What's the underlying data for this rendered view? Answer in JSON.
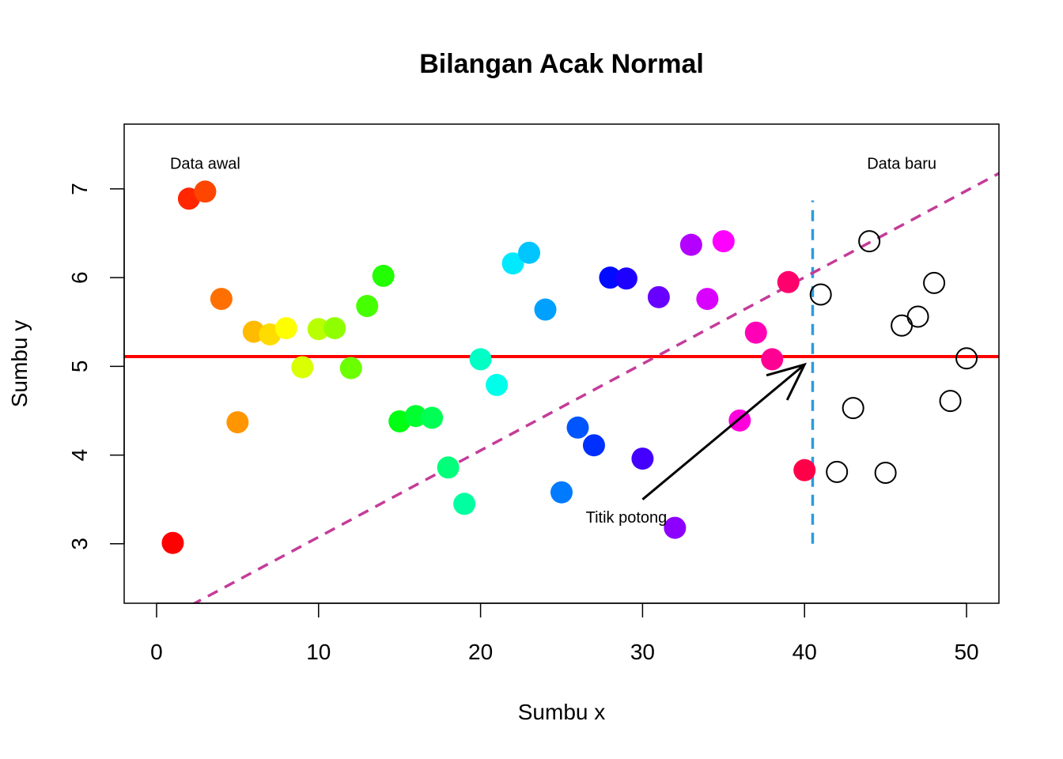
{
  "chart_data": {
    "type": "scatter",
    "title": "Bilangan Acak Normal",
    "xlabel": "Sumbu x",
    "ylabel": "Sumbu y",
    "xlim": [
      -2,
      52
    ],
    "ylim": [
      2.33,
      7.73
    ],
    "xticks": [
      0,
      10,
      20,
      30,
      40,
      50
    ],
    "yticks": [
      3,
      4,
      5,
      6,
      7
    ],
    "grid": false,
    "series": [
      {
        "name": "Data awal",
        "style": "filled",
        "points": [
          {
            "x": 1,
            "y": 3.01,
            "color": "#ff0000"
          },
          {
            "x": 2,
            "y": 6.89,
            "color": "#ff2600"
          },
          {
            "x": 3,
            "y": 6.97,
            "color": "#ff4600"
          },
          {
            "x": 4,
            "y": 5.76,
            "color": "#ff7000"
          },
          {
            "x": 5,
            "y": 4.37,
            "color": "#ff9500"
          },
          {
            "x": 6,
            "y": 5.39,
            "color": "#ffbb00"
          },
          {
            "x": 7,
            "y": 5.36,
            "color": "#ffdc00"
          },
          {
            "x": 8,
            "y": 5.43,
            "color": "#fffe00"
          },
          {
            "x": 9,
            "y": 4.99,
            "color": "#d9ff00"
          },
          {
            "x": 10,
            "y": 5.42,
            "color": "#b8ff00"
          },
          {
            "x": 11,
            "y": 5.43,
            "color": "#8fff00"
          },
          {
            "x": 12,
            "y": 4.98,
            "color": "#6bff00"
          },
          {
            "x": 13,
            "y": 5.68,
            "color": "#46ff00"
          },
          {
            "x": 14,
            "y": 6.02,
            "color": "#21ff00"
          },
          {
            "x": 15,
            "y": 4.38,
            "color": "#00ff12"
          },
          {
            "x": 16,
            "y": 4.44,
            "color": "#00ff30"
          },
          {
            "x": 17,
            "y": 4.42,
            "color": "#00ff55"
          },
          {
            "x": 18,
            "y": 3.86,
            "color": "#00ff7a"
          },
          {
            "x": 19,
            "y": 3.45,
            "color": "#00ffa0"
          },
          {
            "x": 20,
            "y": 5.08,
            "color": "#00ffc5"
          },
          {
            "x": 21,
            "y": 4.79,
            "color": "#00ffea"
          },
          {
            "x": 22,
            "y": 6.16,
            "color": "#00eaff"
          },
          {
            "x": 23,
            "y": 6.28,
            "color": "#00c5ff"
          },
          {
            "x": 24,
            "y": 5.64,
            "color": "#00a0ff"
          },
          {
            "x": 25,
            "y": 3.58,
            "color": "#007aff"
          },
          {
            "x": 26,
            "y": 4.31,
            "color": "#0055ff"
          },
          {
            "x": 27,
            "y": 4.11,
            "color": "#0030ff"
          },
          {
            "x": 28,
            "y": 6.0,
            "color": "#000bff"
          },
          {
            "x": 29,
            "y": 5.99,
            "color": "#1e00ff"
          },
          {
            "x": 30,
            "y": 3.96,
            "color": "#4300ff"
          },
          {
            "x": 31,
            "y": 5.78,
            "color": "#6800ff"
          },
          {
            "x": 32,
            "y": 3.18,
            "color": "#8d00ff"
          },
          {
            "x": 33,
            "y": 6.37,
            "color": "#b300ff"
          },
          {
            "x": 34,
            "y": 5.76,
            "color": "#d800ff"
          },
          {
            "x": 35,
            "y": 6.41,
            "color": "#fd00ff"
          },
          {
            "x": 36,
            "y": 4.39,
            "color": "#ff00dc"
          },
          {
            "x": 37,
            "y": 5.38,
            "color": "#ff00b7"
          },
          {
            "x": 38,
            "y": 5.08,
            "color": "#ff0092"
          },
          {
            "x": 39,
            "y": 5.95,
            "color": "#ff006d"
          },
          {
            "x": 40,
            "y": 3.83,
            "color": "#ff0048"
          }
        ]
      },
      {
        "name": "Data baru",
        "style": "open",
        "points": [
          {
            "x": 41,
            "y": 5.81
          },
          {
            "x": 42,
            "y": 3.81
          },
          {
            "x": 43,
            "y": 4.53
          },
          {
            "x": 44,
            "y": 6.41
          },
          {
            "x": 45,
            "y": 3.8
          },
          {
            "x": 46,
            "y": 5.46
          },
          {
            "x": 47,
            "y": 5.56
          },
          {
            "x": 48,
            "y": 5.94
          },
          {
            "x": 49,
            "y": 4.61
          },
          {
            "x": 50,
            "y": 5.09
          }
        ]
      }
    ],
    "lines": [
      {
        "name": "hline-mean",
        "kind": "horizontal",
        "y": 5.11,
        "color": "#ff0000",
        "dash": "solid"
      },
      {
        "name": "vline-split",
        "kind": "vertical",
        "x": 40.5,
        "y_from": 3.0,
        "y_to": 6.87,
        "color": "#2e9ae0",
        "dash": "dashed"
      },
      {
        "name": "regression-line",
        "kind": "abline",
        "intercept": 2.1,
        "slope": 0.0976,
        "color": "#c43c99",
        "dash": "dashed"
      }
    ],
    "annotations": [
      {
        "name": "label-data-awal",
        "text": "Data awal",
        "x": 3,
        "y": 7.29
      },
      {
        "name": "label-data-baru",
        "text": "Data baru",
        "x": 46,
        "y": 7.29
      },
      {
        "name": "label-titik-potong",
        "text": "Titik potong",
        "x": 29,
        "y": 3.3
      }
    ],
    "arrow": {
      "x0": 30,
      "y0": 3.5,
      "x1": 40,
      "y1": 5.02,
      "color": "#000000"
    }
  }
}
